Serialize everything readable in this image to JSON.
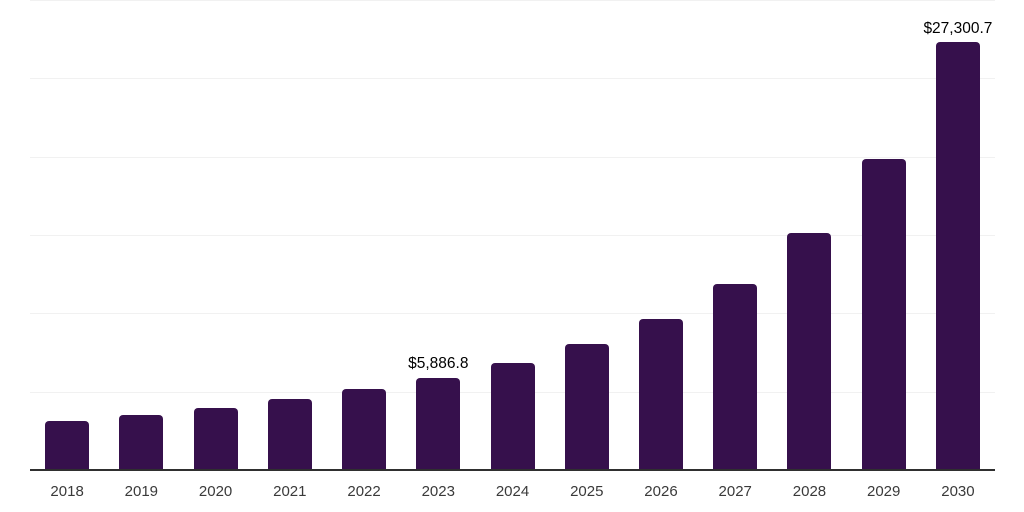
{
  "chart_data": {
    "type": "bar",
    "title": "",
    "xlabel": "",
    "ylabel": "",
    "categories": [
      "2018",
      "2019",
      "2020",
      "2021",
      "2022",
      "2023",
      "2024",
      "2025",
      "2026",
      "2027",
      "2028",
      "2029",
      "2030"
    ],
    "values": [
      3100,
      3500,
      3960,
      4560,
      5160,
      5886.8,
      6830,
      8020,
      9630,
      11900,
      15150,
      19840,
      27300.7
    ],
    "value_labels": [
      "",
      "",
      "",
      "",
      "",
      "$5,886.8",
      "",
      "",
      "",
      "",
      "",
      "",
      "$27,300.7"
    ],
    "ylim": [
      0,
      30000
    ],
    "gridline_step": 5000,
    "grid": true,
    "legend": "none",
    "colors": {
      "bar": "#36104C",
      "gridline": "#f1f1f1",
      "axis_line": "#2f2f2f",
      "value_label": "#000000",
      "tick_label": "#3a3a3a",
      "background": "#ffffff"
    }
  }
}
